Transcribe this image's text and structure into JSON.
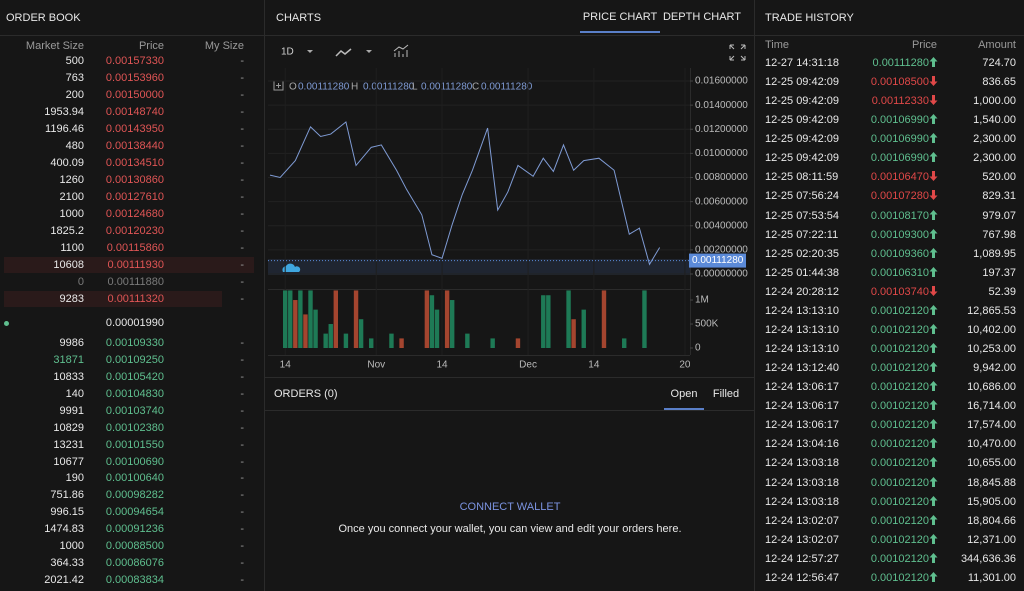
{
  "order_book": {
    "title": "ORDER BOOK",
    "columns": [
      "Market Size",
      "Price",
      "My Size"
    ],
    "color": "#e05555",
    "asks": [
      {
        "size": 500,
        "price": "0.00157330",
        "my_size": "-"
      },
      {
        "size": 763,
        "price": "0.00153960",
        "my_size": "-"
      },
      {
        "size": 200,
        "price": "0.00150000",
        "my_size": "-"
      },
      {
        "size": 1953.94,
        "price": "0.00148740",
        "my_size": "-"
      },
      {
        "size": 1196.46,
        "price": "0.00143950",
        "my_size": "-"
      },
      {
        "size": 480,
        "price": "0.00138440",
        "my_size": "-"
      },
      {
        "size": 400.09,
        "price": "0.00134510",
        "my_size": "-"
      },
      {
        "size": 1260,
        "price": "0.00130860",
        "my_size": "-"
      },
      {
        "size": 2100,
        "price": "0.00127610",
        "my_size": "-"
      },
      {
        "size": 1000,
        "price": "0.00124680",
        "my_size": "-"
      },
      {
        "size": 1825.2,
        "price": "0.00120230",
        "my_size": "-"
      },
      {
        "size": 1100,
        "price": "0.00115860",
        "my_size": "-"
      },
      {
        "size": 10608,
        "price": "0.00111930",
        "my_size": "-"
      },
      {
        "size": 0,
        "price": "0.00111880",
        "my_size": "-",
        "color": "#7a7a7a"
      },
      {
        "size": 9283,
        "price": "0.00111320",
        "my_size": "-"
      }
    ],
    "spread": "0.00001990",
    "bids_color": "#5fbf8f",
    "bids": [
      {
        "size": 9986,
        "price": "0.00109330",
        "my_size": "-"
      },
      {
        "size": 31871,
        "price": "0.00109250",
        "my_size": "-",
        "size_color": "#5fbf8f"
      },
      {
        "size": 10833,
        "price": "0.00105420",
        "my_size": "-"
      },
      {
        "size": 140,
        "price": "0.00104830",
        "my_size": "-"
      },
      {
        "size": 9991,
        "price": "0.00103740",
        "my_size": "-"
      },
      {
        "size": 10829,
        "price": "0.00102380",
        "my_size": "-"
      },
      {
        "size": 13231,
        "price": "0.00101550",
        "my_size": "-"
      },
      {
        "size": 10677,
        "price": "0.00100690",
        "my_size": "-"
      },
      {
        "size": 190,
        "price": "0.00100640",
        "my_size": "-"
      },
      {
        "size": 751.86,
        "price": "0.00098282",
        "my_size": "-"
      },
      {
        "size": 996.15,
        "price": "0.00094654",
        "my_size": "-"
      },
      {
        "size": 1474.83,
        "price": "0.00091236",
        "my_size": "-"
      },
      {
        "size": 1000,
        "price": "0.00088500",
        "my_size": "-"
      },
      {
        "size": 364.33,
        "price": "0.00086076",
        "my_size": "-"
      },
      {
        "size": 2021.42,
        "price": "0.00083834",
        "my_size": "-"
      }
    ]
  },
  "charts": {
    "title": "CHARTS",
    "tabs": [
      "PRICE CHART",
      "DEPTH CHART"
    ],
    "interval": "1D",
    "ohlc": [
      "O",
      "0.00111280",
      "H",
      "0.00111280",
      "L",
      "0.00111280",
      "C",
      "0.00111280"
    ]
  },
  "chart_data": [
    {
      "type": "line",
      "x": [
        -3,
        -1,
        2,
        5,
        7,
        9,
        12,
        14,
        17,
        19,
        22,
        24,
        27,
        29,
        31,
        33,
        35,
        37,
        40,
        42,
        44,
        46,
        49,
        51,
        53,
        55,
        57,
        59,
        62,
        65,
        68,
        70,
        72,
        74
      ],
      "values": [
        0.0082,
        0.008,
        0.0094,
        0.0122,
        0.0114,
        0.0116,
        0.0126,
        0.009,
        0.0105,
        0.0107,
        0.0086,
        0.007,
        0.0049,
        0.0016,
        0.0013,
        0.0041,
        0.0066,
        0.0086,
        0.0121,
        0.0053,
        0.0068,
        0.009,
        0.0081,
        0.0096,
        0.0085,
        0.0107,
        0.0086,
        0.0094,
        0.0096,
        0.0086,
        0.0033,
        0.0038,
        0.0008,
        0.0022
      ],
      "color": "#7f9bd4",
      "xlim": [
        -3.4,
        80
      ],
      "ylim": [
        0,
        0.016
      ],
      "yticks": [
        {
          "value": 0.016,
          "label": "0.01600000"
        },
        {
          "value": 0.014,
          "label": "0.01400000"
        },
        {
          "value": 0.012,
          "label": "0.01200000"
        },
        {
          "value": 0.01,
          "label": "0.01000000"
        },
        {
          "value": 0.008,
          "label": "0.00800000"
        },
        {
          "value": 0.006,
          "label": "0.00600000"
        },
        {
          "value": 0.004,
          "label": "0.00400000"
        },
        {
          "value": 0.002,
          "label": "0.00200000"
        },
        {
          "value": 0,
          "label": "0.00000000"
        }
      ],
      "xticks": [
        {
          "value": 0,
          "label": "14"
        },
        {
          "value": 18,
          "label": "Nov"
        },
        {
          "value": 31,
          "label": "14"
        },
        {
          "value": 48,
          "label": "Dec"
        },
        {
          "value": 61,
          "label": "14"
        },
        {
          "value": 79,
          "label": "20"
        }
      ],
      "last_price": {
        "value": 0.0011128,
        "label": "0.00111280"
      },
      "grid": true
    },
    {
      "type": "bar",
      "x": [
        0,
        1,
        2,
        3,
        4,
        5,
        6,
        8,
        9,
        10,
        12,
        14,
        15,
        17,
        21,
        23,
        28,
        29,
        30,
        32,
        33,
        36,
        41,
        46,
        51,
        52,
        56,
        57,
        59,
        63,
        67,
        71
      ],
      "values": [
        1200000,
        1200000,
        1000000,
        1200000,
        700000,
        1200000,
        800000,
        300000,
        500000,
        1200000,
        300000,
        1200000,
        600000,
        200000,
        300000,
        200000,
        1200000,
        1100000,
        800000,
        1200000,
        1000000,
        300000,
        200000,
        200000,
        1100000,
        1100000,
        1200000,
        600000,
        800000,
        1200000,
        200000,
        1200000
      ],
      "colors": [
        "#1e7a56",
        "#1e7a56",
        "#a4452f",
        "#1e7a56",
        "#a4452f",
        "#1e7a56",
        "#1e7a56",
        "#1e7a56",
        "#1e7a56",
        "#a4452f",
        "#1e7a56",
        "#a4452f",
        "#1e7a56",
        "#1e7a56",
        "#1e7a56",
        "#a4452f",
        "#a4452f",
        "#1e7a56",
        "#1e7a56",
        "#a4452f",
        "#1e7a56",
        "#1e7a56",
        "#1e7a56",
        "#a4452f",
        "#1e7a56",
        "#1e7a56",
        "#1e7a56",
        "#a4452f",
        "#1e7a56",
        "#a4452f",
        "#1e7a56",
        "#1e7a56"
      ],
      "xlim": [
        -3.4,
        80
      ],
      "ylim": [
        0,
        1230000
      ],
      "yticks": [
        {
          "value": 1000000,
          "label": "1M"
        },
        {
          "value": 500000,
          "label": "500K"
        },
        0
      ]
    }
  ],
  "orders": {
    "title": "ORDERS (0)",
    "tabs": [
      "Open",
      "Filled"
    ],
    "action": "CONNECT WALLET",
    "message": "Once you connect your wallet, you can view and edit your orders here."
  },
  "trade_history": {
    "title": "TRADE HISTORY",
    "columns": [
      "Time",
      "Price",
      "Amount"
    ],
    "rows": [
      {
        "time": "12-27 14:31:18",
        "price": "0.00111280",
        "amount": "724.70",
        "color": "#5fbf8f"
      },
      {
        "time": "12-25 09:42:09",
        "price": "0.00108500",
        "amount": "836.65",
        "color": "#e04848"
      },
      {
        "time": "12-25 09:42:09",
        "price": "0.00112330",
        "amount": "1,000.00",
        "color": "#e04848"
      },
      {
        "time": "12-25 09:42:09",
        "price": "0.00106990",
        "amount": "1,540.00",
        "color": "#5fbf8f"
      },
      {
        "time": "12-25 09:42:09",
        "price": "0.00106990",
        "amount": "2,300.00",
        "color": "#5fbf8f"
      },
      {
        "time": "12-25 09:42:09",
        "price": "0.00106990",
        "amount": "2,300.00",
        "color": "#5fbf8f"
      },
      {
        "time": "12-25 08:11:59",
        "price": "0.00106470",
        "amount": "520.00",
        "color": "#e04848"
      },
      {
        "time": "12-25 07:56:24",
        "price": "0.00107280",
        "amount": "829.31",
        "color": "#e04848"
      },
      {
        "time": "12-25 07:53:54",
        "price": "0.00108170",
        "amount": "979.07",
        "color": "#5fbf8f"
      },
      {
        "time": "12-25 07:22:11",
        "price": "0.00109300",
        "amount": "767.98",
        "color": "#5fbf8f"
      },
      {
        "time": "12-25 02:20:35",
        "price": "0.00109360",
        "amount": "1,089.95",
        "color": "#5fbf8f"
      },
      {
        "time": "12-25 01:44:38",
        "price": "0.00106310",
        "amount": "197.37",
        "color": "#5fbf8f"
      },
      {
        "time": "12-24 20:28:12",
        "price": "0.00103740",
        "amount": "52.39",
        "color": "#e04848"
      },
      {
        "time": "12-24 13:13:10",
        "price": "0.00102120",
        "amount": "12,865.53",
        "color": "#5fbf8f"
      },
      {
        "time": "12-24 13:13:10",
        "price": "0.00102120",
        "amount": "10,402.00",
        "color": "#5fbf8f"
      },
      {
        "time": "12-24 13:13:10",
        "price": "0.00102120",
        "amount": "10,253.00",
        "color": "#5fbf8f"
      },
      {
        "time": "12-24 13:12:40",
        "price": "0.00102120",
        "amount": "9,942.00",
        "color": "#5fbf8f"
      },
      {
        "time": "12-24 13:06:17",
        "price": "0.00102120",
        "amount": "10,686.00",
        "color": "#5fbf8f"
      },
      {
        "time": "12-24 13:06:17",
        "price": "0.00102120",
        "amount": "16,714.00",
        "color": "#5fbf8f"
      },
      {
        "time": "12-24 13:06:17",
        "price": "0.00102120",
        "amount": "17,574.00",
        "color": "#5fbf8f"
      },
      {
        "time": "12-24 13:04:16",
        "price": "0.00102120",
        "amount": "10,470.00",
        "color": "#5fbf8f"
      },
      {
        "time": "12-24 13:03:18",
        "price": "0.00102120",
        "amount": "10,655.00",
        "color": "#5fbf8f"
      },
      {
        "time": "12-24 13:03:18",
        "price": "0.00102120",
        "amount": "18,845.88",
        "color": "#5fbf8f"
      },
      {
        "time": "12-24 13:03:18",
        "price": "0.00102120",
        "amount": "15,905.00",
        "color": "#5fbf8f"
      },
      {
        "time": "12-24 13:02:07",
        "price": "0.00102120",
        "amount": "18,804.66",
        "color": "#5fbf8f"
      },
      {
        "time": "12-24 13:02:07",
        "price": "0.00102120",
        "amount": "12,371.00",
        "color": "#5fbf8f"
      },
      {
        "time": "12-24 12:57:27",
        "price": "0.00102120",
        "amount": "344,636.36",
        "color": "#5fbf8f"
      },
      {
        "time": "12-24 12:56:47",
        "price": "0.00102120",
        "amount": "11,301.00",
        "color": "#5fbf8f"
      }
    ]
  }
}
